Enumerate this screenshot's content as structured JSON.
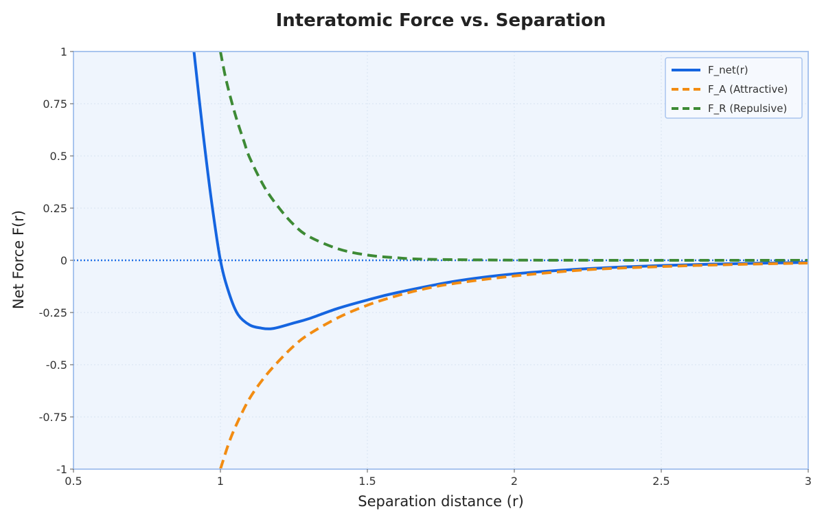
{
  "chart_data": {
    "type": "line",
    "title": "Interatomic Force vs. Separation",
    "xlabel": "Separation distance (r)",
    "ylabel": "Net Force F(r)",
    "xlim": [
      0.5,
      3
    ],
    "ylim": [
      -1,
      1
    ],
    "x_ticks": [
      0.5,
      1,
      1.5,
      2,
      2.5,
      3
    ],
    "x_tick_labels": [
      "0.5",
      "1",
      "1.5",
      "2",
      "2.5",
      "3"
    ],
    "y_ticks": [
      -1,
      -0.75,
      -0.5,
      -0.25,
      0,
      0.25,
      0.5,
      0.75,
      1
    ],
    "y_tick_labels": [
      "-1",
      "-0.75",
      "-0.5",
      "-0.25",
      "0",
      "0.25",
      "0.5",
      "0.75",
      "1"
    ],
    "grid": true,
    "legend_position": "top-right",
    "zero_line": {
      "y": 0,
      "color": "#1f6fe6",
      "style": "dotted"
    },
    "series": [
      {
        "name": "F_net(r)",
        "color": "#1565e0",
        "style": "solid",
        "x": [
          0.91,
          0.94,
          0.97,
          1.0,
          1.03,
          1.06,
          1.1,
          1.14,
          1.17,
          1.2,
          1.25,
          1.3,
          1.4,
          1.5,
          1.6,
          1.8,
          2.0,
          2.25,
          2.5,
          2.75,
          3.0
        ],
        "y": [
          1.0,
          0.62,
          0.28,
          0.0,
          -0.16,
          -0.26,
          -0.31,
          -0.325,
          -0.328,
          -0.32,
          -0.3,
          -0.28,
          -0.23,
          -0.19,
          -0.155,
          -0.1,
          -0.065,
          -0.04,
          -0.025,
          -0.016,
          -0.01
        ]
      },
      {
        "name": "F_A (Attractive)",
        "color": "#f28c12",
        "style": "dashed",
        "x": [
          1.0,
          1.03,
          1.06,
          1.1,
          1.15,
          1.2,
          1.25,
          1.3,
          1.4,
          1.5,
          1.6,
          1.7,
          1.8,
          2.0,
          2.25,
          2.5,
          2.75,
          3.0
        ],
        "y": [
          -1.0,
          -0.87,
          -0.77,
          -0.66,
          -0.56,
          -0.48,
          -0.41,
          -0.355,
          -0.275,
          -0.215,
          -0.17,
          -0.135,
          -0.11,
          -0.075,
          -0.045,
          -0.03,
          -0.02,
          -0.013
        ]
      },
      {
        "name": "F_R (Repulsive)",
        "color": "#3d8a35",
        "style": "dashed",
        "x": [
          1.0,
          1.02,
          1.05,
          1.08,
          1.1,
          1.15,
          1.2,
          1.25,
          1.3,
          1.4,
          1.5,
          1.6,
          1.7,
          2.0,
          2.5,
          3.0
        ],
        "y": [
          1.0,
          0.86,
          0.7,
          0.57,
          0.49,
          0.35,
          0.25,
          0.17,
          0.115,
          0.055,
          0.025,
          0.012,
          0.005,
          0.001,
          0.0,
          0.0
        ]
      }
    ]
  },
  "colors": {
    "plot_background": "#eff5fd",
    "frame": "#a8c4ee",
    "grid": "#d7e2f1"
  }
}
